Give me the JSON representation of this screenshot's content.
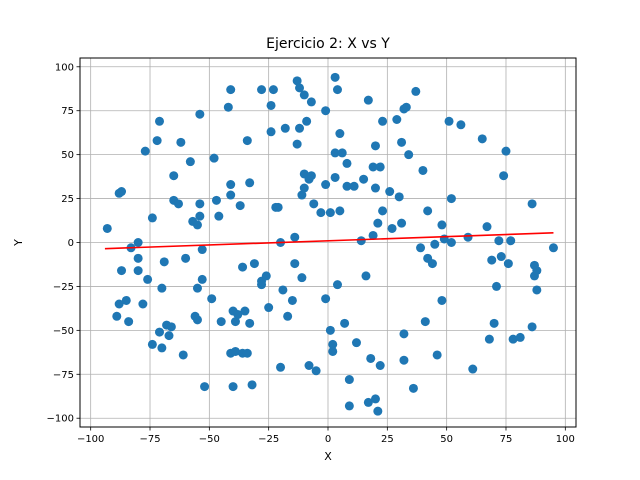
{
  "chart_data": {
    "type": "scatter",
    "title": "Ejercicio 2: X vs Y",
    "xlabel": "X",
    "ylabel": "Y",
    "xlim": [
      -104.5,
      104.5
    ],
    "ylim": [
      -105,
      105
    ],
    "xticks": [
      -100,
      -75,
      -50,
      -25,
      0,
      25,
      50,
      75,
      100
    ],
    "yticks": [
      -100,
      -75,
      -50,
      -25,
      0,
      25,
      50,
      75,
      100
    ],
    "grid": true,
    "point_color": "#1f77b4",
    "line_color": "#ff0000",
    "points": [
      [
        -93,
        8
      ],
      [
        -88,
        28
      ],
      [
        -87,
        29
      ],
      [
        -87,
        -16
      ],
      [
        -89,
        -42
      ],
      [
        -88,
        -35
      ],
      [
        -85,
        -33
      ],
      [
        -84,
        -45
      ],
      [
        -83,
        -3
      ],
      [
        -80,
        0
      ],
      [
        -80,
        -9
      ],
      [
        -80,
        -16
      ],
      [
        -78,
        -35
      ],
      [
        -77,
        52
      ],
      [
        -76,
        -21
      ],
      [
        -74,
        -58
      ],
      [
        -74,
        14
      ],
      [
        -72,
        58
      ],
      [
        -71,
        69
      ],
      [
        -71,
        -51
      ],
      [
        -70,
        -60
      ],
      [
        -70,
        -26
      ],
      [
        -69,
        -11
      ],
      [
        -68,
        -47
      ],
      [
        -67,
        -53
      ],
      [
        -66,
        -48
      ],
      [
        -65,
        38
      ],
      [
        -65,
        24
      ],
      [
        -63,
        22
      ],
      [
        -62,
        57
      ],
      [
        -61,
        -64
      ],
      [
        -60,
        -9
      ],
      [
        -58,
        46
      ],
      [
        -57,
        12
      ],
      [
        -56,
        -42
      ],
      [
        -55,
        -44
      ],
      [
        -55,
        -26
      ],
      [
        -55,
        10
      ],
      [
        -54,
        73
      ],
      [
        -54,
        22
      ],
      [
        -54,
        15
      ],
      [
        -53,
        -4
      ],
      [
        -53,
        -21
      ],
      [
        -52,
        -82
      ],
      [
        -49,
        -32
      ],
      [
        -48,
        48
      ],
      [
        -47,
        24
      ],
      [
        -46,
        15
      ],
      [
        -45,
        -45
      ],
      [
        -42,
        77
      ],
      [
        -41,
        -63
      ],
      [
        -41,
        87
      ],
      [
        -41,
        33
      ],
      [
        -41,
        27
      ],
      [
        -40,
        -82
      ],
      [
        -40,
        -39
      ],
      [
        -39,
        -45
      ],
      [
        -39,
        -62
      ],
      [
        -38,
        -41
      ],
      [
        -37,
        21
      ],
      [
        -36,
        -14
      ],
      [
        -36,
        -63
      ],
      [
        -35,
        -39
      ],
      [
        -34,
        58
      ],
      [
        -34,
        -63
      ],
      [
        -33,
        -46
      ],
      [
        -33,
        34
      ],
      [
        -32,
        -81
      ],
      [
        -31,
        -12
      ],
      [
        -28,
        -22
      ],
      [
        -28,
        -24
      ],
      [
        -28,
        87
      ],
      [
        -26,
        -19
      ],
      [
        -25,
        -37
      ],
      [
        -24,
        78
      ],
      [
        -24,
        63
      ],
      [
        -23,
        87
      ],
      [
        -22,
        20
      ],
      [
        -21,
        20
      ],
      [
        -20,
        -71
      ],
      [
        -20,
        0
      ],
      [
        -19,
        -27
      ],
      [
        -18,
        65
      ],
      [
        -17,
        -42
      ],
      [
        -15,
        -33
      ],
      [
        -14,
        3
      ],
      [
        -14,
        -12
      ],
      [
        -13,
        56
      ],
      [
        -13,
        92
      ],
      [
        -12,
        88
      ],
      [
        -12,
        65
      ],
      [
        -11,
        -20
      ],
      [
        -11,
        27
      ],
      [
        -10,
        84
      ],
      [
        -10,
        39
      ],
      [
        -10,
        31
      ],
      [
        -9,
        69
      ],
      [
        -8,
        36
      ],
      [
        -8,
        -70
      ],
      [
        -7,
        80
      ],
      [
        -7,
        38
      ],
      [
        -6,
        22
      ],
      [
        -5,
        -73
      ],
      [
        -3,
        17
      ],
      [
        -1,
        33
      ],
      [
        -1,
        -32
      ],
      [
        -1,
        75
      ],
      [
        1,
        17
      ],
      [
        1,
        -50
      ],
      [
        2,
        -62
      ],
      [
        2,
        -58
      ],
      [
        3,
        94
      ],
      [
        3,
        51
      ],
      [
        3,
        37
      ],
      [
        4,
        87
      ],
      [
        4,
        -24
      ],
      [
        5,
        18
      ],
      [
        5,
        62
      ],
      [
        6,
        51
      ],
      [
        7,
        -46
      ],
      [
        8,
        45
      ],
      [
        8,
        32
      ],
      [
        9,
        -78
      ],
      [
        9,
        -93
      ],
      [
        11,
        32
      ],
      [
        12,
        -57
      ],
      [
        14,
        1
      ],
      [
        15,
        36
      ],
      [
        16,
        -19
      ],
      [
        17,
        81
      ],
      [
        17,
        -91
      ],
      [
        18,
        -66
      ],
      [
        19,
        43
      ],
      [
        19,
        4
      ],
      [
        20,
        55
      ],
      [
        20,
        -89
      ],
      [
        20,
        31
      ],
      [
        21,
        11
      ],
      [
        21,
        -96
      ],
      [
        22,
        -70
      ],
      [
        22,
        43
      ],
      [
        23,
        69
      ],
      [
        23,
        18
      ],
      [
        26,
        29
      ],
      [
        27,
        8
      ],
      [
        29,
        70
      ],
      [
        30,
        26
      ],
      [
        31,
        57
      ],
      [
        31,
        11
      ],
      [
        32,
        -52
      ],
      [
        32,
        -67
      ],
      [
        32,
        76
      ],
      [
        33,
        77
      ],
      [
        34,
        50
      ],
      [
        36,
        -83
      ],
      [
        37,
        86
      ],
      [
        39,
        -3
      ],
      [
        40,
        41
      ],
      [
        41,
        -45
      ],
      [
        42,
        18
      ],
      [
        42,
        -9
      ],
      [
        44,
        -12
      ],
      [
        45,
        -1
      ],
      [
        46,
        -64
      ],
      [
        48,
        -33
      ],
      [
        48,
        10
      ],
      [
        49,
        2
      ],
      [
        51,
        69
      ],
      [
        52,
        25
      ],
      [
        52,
        0
      ],
      [
        56,
        67
      ],
      [
        59,
        3
      ],
      [
        61,
        -72
      ],
      [
        65,
        59
      ],
      [
        67,
        9
      ],
      [
        68,
        -55
      ],
      [
        69,
        -10
      ],
      [
        70,
        -46
      ],
      [
        71,
        -25
      ],
      [
        72,
        1
      ],
      [
        73,
        -8
      ],
      [
        74,
        38
      ],
      [
        75,
        52
      ],
      [
        76,
        -12
      ],
      [
        77,
        1
      ],
      [
        78,
        -55
      ],
      [
        81,
        -54
      ],
      [
        86,
        -48
      ],
      [
        86,
        22
      ],
      [
        87,
        -19
      ],
      [
        87,
        -13
      ],
      [
        88,
        -16
      ],
      [
        88,
        -27
      ],
      [
        95,
        -3
      ]
    ],
    "line": [
      [
        -94,
        -3.5
      ],
      [
        95,
        5.5
      ]
    ]
  }
}
